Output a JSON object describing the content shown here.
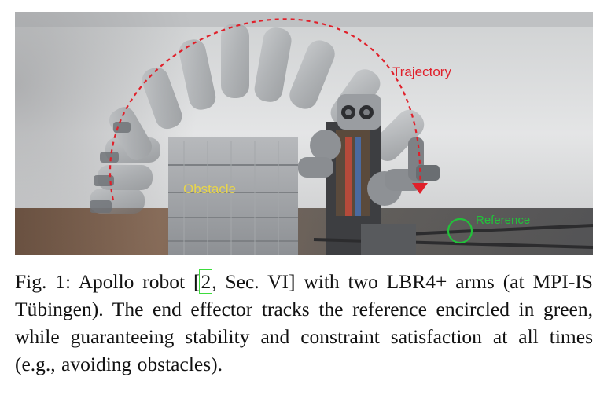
{
  "figure": {
    "labels": {
      "trajectory": "Trajectory",
      "obstacle": "Obstacle",
      "reference": "Reference"
    },
    "colors": {
      "trajectory": "#e0202a",
      "obstacle": "#e8d54a",
      "reference": "#22c23a"
    }
  },
  "caption": {
    "prefix": "Fig. 1: Apollo robot [",
    "cite_number": "2",
    "cite_rest": ", Sec. VI] with two LBR4+ arms (at MPI-IS Tübingen). The end effector tracks the reference encircled in green, while guaranteeing stability and constraint satisfaction at all times (e.g., avoiding obstacles)."
  }
}
